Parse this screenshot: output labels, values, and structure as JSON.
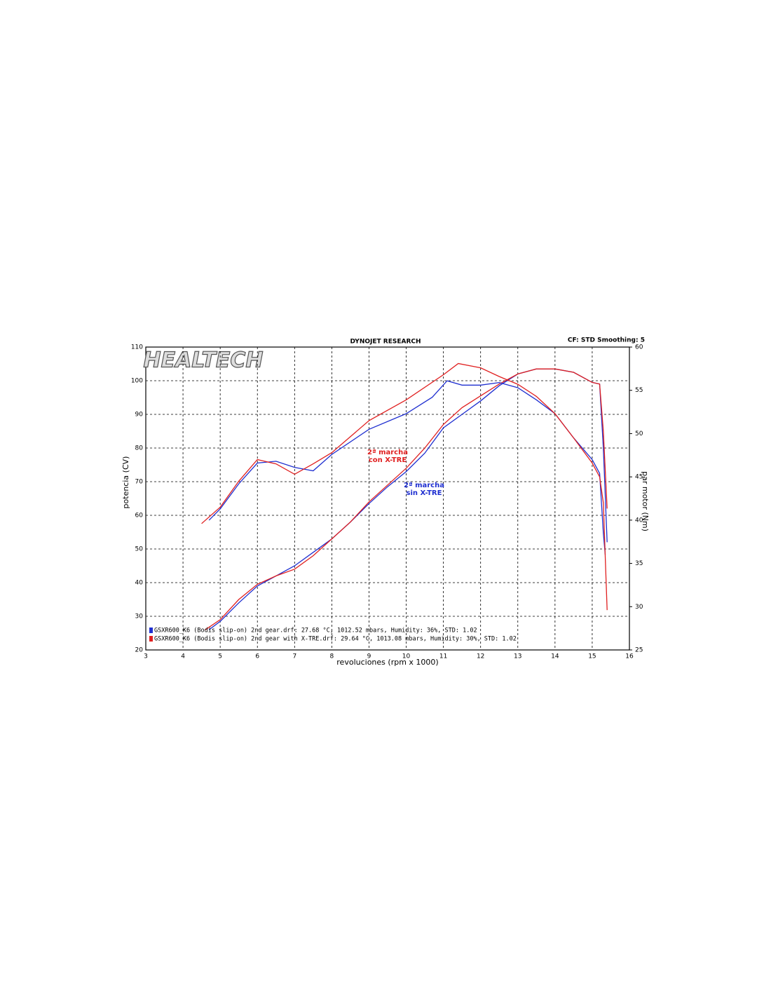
{
  "chart_data": {
    "type": "line",
    "title": "DYNOJET RESEARCH",
    "subtitle": "CF: STD  Smoothing: 5",
    "logo": "HEALTECH",
    "xlabel": "revoluciones (rpm x 1000)",
    "ylabel": "potencia (CV)",
    "y2label": "par motor (Nm)",
    "xlim": [
      3,
      16
    ],
    "xticks": [
      3,
      4,
      5,
      6,
      7,
      8,
      9,
      10,
      11,
      12,
      13,
      14,
      15,
      16
    ],
    "ylim": [
      20,
      110
    ],
    "yticks": [
      20,
      30,
      40,
      50,
      60,
      70,
      80,
      90,
      100,
      110
    ],
    "y2lim": [
      25,
      60
    ],
    "y2ticks": [
      25,
      30,
      35,
      40,
      45,
      50,
      55,
      60
    ],
    "grid": true,
    "series": [
      {
        "name": "GSXR600_K6 (Bodis slip-on) 2nd gear.drf: 27.68 °C, 1012.52 mbars, Humidity: 36%, STD: 1.02",
        "color": "#1f2fd0",
        "x": [
          4.7,
          5,
          5.5,
          6,
          6.5,
          7,
          7.5,
          8,
          8.5,
          9,
          9.5,
          10,
          10.5,
          11,
          11.5,
          12,
          12.5,
          13,
          13.5,
          14,
          14.5,
          15,
          15.2,
          15.3,
          15.4
        ],
        "values": [
          26,
          28.5,
          34,
          39,
          42,
          45,
          49,
          53,
          58,
          63.5,
          68.5,
          73,
          78.5,
          86,
          90,
          94,
          98.5,
          102,
          103.5,
          103.5,
          102.5,
          99.5,
          99,
          80,
          52
        ]
      },
      {
        "name": "GSXR600_K6 (Bodis slip-on) 2nd gear with X-TRE.drf: 29.64 °C, 1013.08 mbars, Humidity: 30%, STD: 1.02",
        "color": "#e02020",
        "x": [
          4.6,
          5,
          5.5,
          6,
          6.5,
          7,
          7.5,
          8,
          8.5,
          9,
          9.5,
          10,
          10.5,
          11,
          11.5,
          12,
          12.5,
          13,
          13.5,
          14,
          14.5,
          15,
          15.2,
          15.3,
          15.4
        ],
        "values": [
          26,
          29,
          35,
          39.5,
          42,
          44,
          48,
          53,
          58,
          64,
          69,
          74,
          80,
          87,
          92,
          95.5,
          99,
          102,
          103.5,
          103.5,
          102.5,
          99.5,
          99,
          85,
          62
        ]
      },
      {
        "axis": "y2",
        "color": "#1f2fd0",
        "x": [
          4.7,
          5,
          5.5,
          6,
          6.5,
          7,
          7.5,
          8,
          9,
          10,
          10.7,
          11.1,
          11.5,
          12,
          12.5,
          13,
          13.5,
          14,
          14.5,
          15,
          15.2,
          15.3,
          15.35
        ],
        "values": [
          40,
          41.3,
          44.2,
          46.6,
          46.8,
          46.1,
          45.7,
          47.6,
          50.5,
          52.3,
          54.2,
          56.1,
          55.6,
          55.6,
          55.9,
          55.3,
          53.9,
          52.3,
          49.5,
          47,
          45.4,
          38.5,
          36
        ]
      },
      {
        "axis": "y2",
        "color": "#e02020",
        "x": [
          4.5,
          5,
          5.5,
          6,
          6.5,
          7,
          7.5,
          8,
          9,
          10,
          11,
          11.4,
          12,
          12.5,
          13,
          13.5,
          14,
          14.5,
          15,
          15.2,
          15.3,
          15.4
        ],
        "values": [
          39.6,
          41.5,
          44.5,
          47,
          46.5,
          45.3,
          46.5,
          47.8,
          51.5,
          53.9,
          56.8,
          58.1,
          57.6,
          56.6,
          55.7,
          54.3,
          52.3,
          49.5,
          46.6,
          45,
          42,
          29.6
        ]
      }
    ],
    "annotations": [
      {
        "lines": [
          "2ª marcha",
          "con X-TRE"
        ],
        "color": "#e02020"
      },
      {
        "lines": [
          "2ª marcha",
          "sin X-TRE"
        ],
        "color": "#1f2fd0"
      }
    ]
  }
}
